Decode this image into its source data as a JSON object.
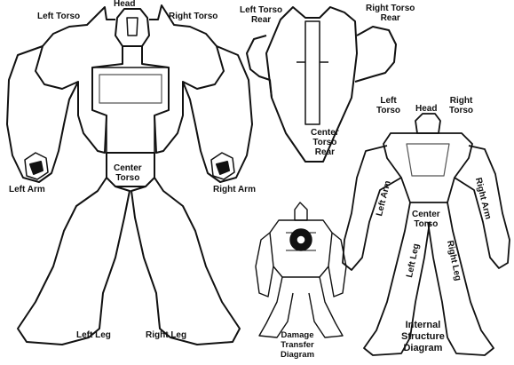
{
  "main_figure": {
    "head": "Head",
    "left_torso": "Left Torso",
    "right_torso": "Right Torso",
    "center_torso_line1": "Center",
    "center_torso_line2": "Torso",
    "left_arm": "Left Arm",
    "right_arm": "Right Arm",
    "left_leg": "Left Leg",
    "right_leg": "Right Leg"
  },
  "rear_figure": {
    "left_torso_rear_line1": "Left Torso",
    "left_torso_rear_line2": "Rear",
    "right_torso_rear_line1": "Right Torso",
    "right_torso_rear_line2": "Rear",
    "center_torso_rear_line1": "Center",
    "center_torso_rear_line2": "Torso",
    "center_torso_rear_line3": "Rear"
  },
  "internal_structure": {
    "left_torso_line1": "Left",
    "left_torso_line2": "Torso",
    "head": "Head",
    "right_torso_line1": "Right",
    "right_torso_line2": "Torso",
    "left_arm": "Left Arm",
    "right_arm": "Right Arm",
    "center_torso_line1": "Center",
    "center_torso_line2": "Torso",
    "left_leg": "Left Leg",
    "right_leg": "Right Leg",
    "title_line1": "Internal",
    "title_line2": "Structure",
    "title_line3": "Diagram"
  },
  "damage_transfer": {
    "title_line1": "Damage",
    "title_line2": "Transfer",
    "title_line3": "Diagram"
  }
}
